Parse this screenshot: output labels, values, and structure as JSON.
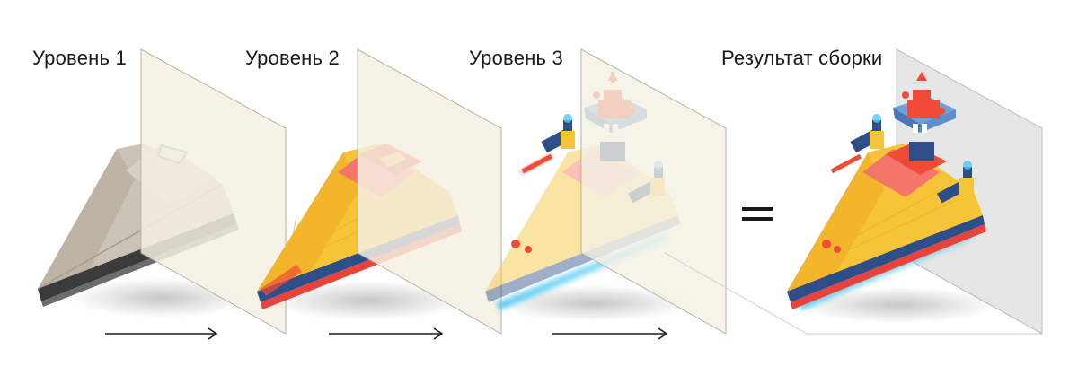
{
  "labels": {
    "level1": "Уровень 1",
    "level2": "Уровень 2",
    "level3": "Уровень 3",
    "result": "Результат сборки"
  },
  "equals_sign": "=",
  "colors": {
    "gray_ship": "#c9c0b3",
    "yellow": "#f6c438",
    "red": "#ef4b36",
    "blue_turret": "#6e9fd8",
    "glow": "#4fc8f5",
    "panel": "#f4f0e3",
    "panel_result": "#e8e8e8",
    "arrow": "#1a1a1a"
  }
}
